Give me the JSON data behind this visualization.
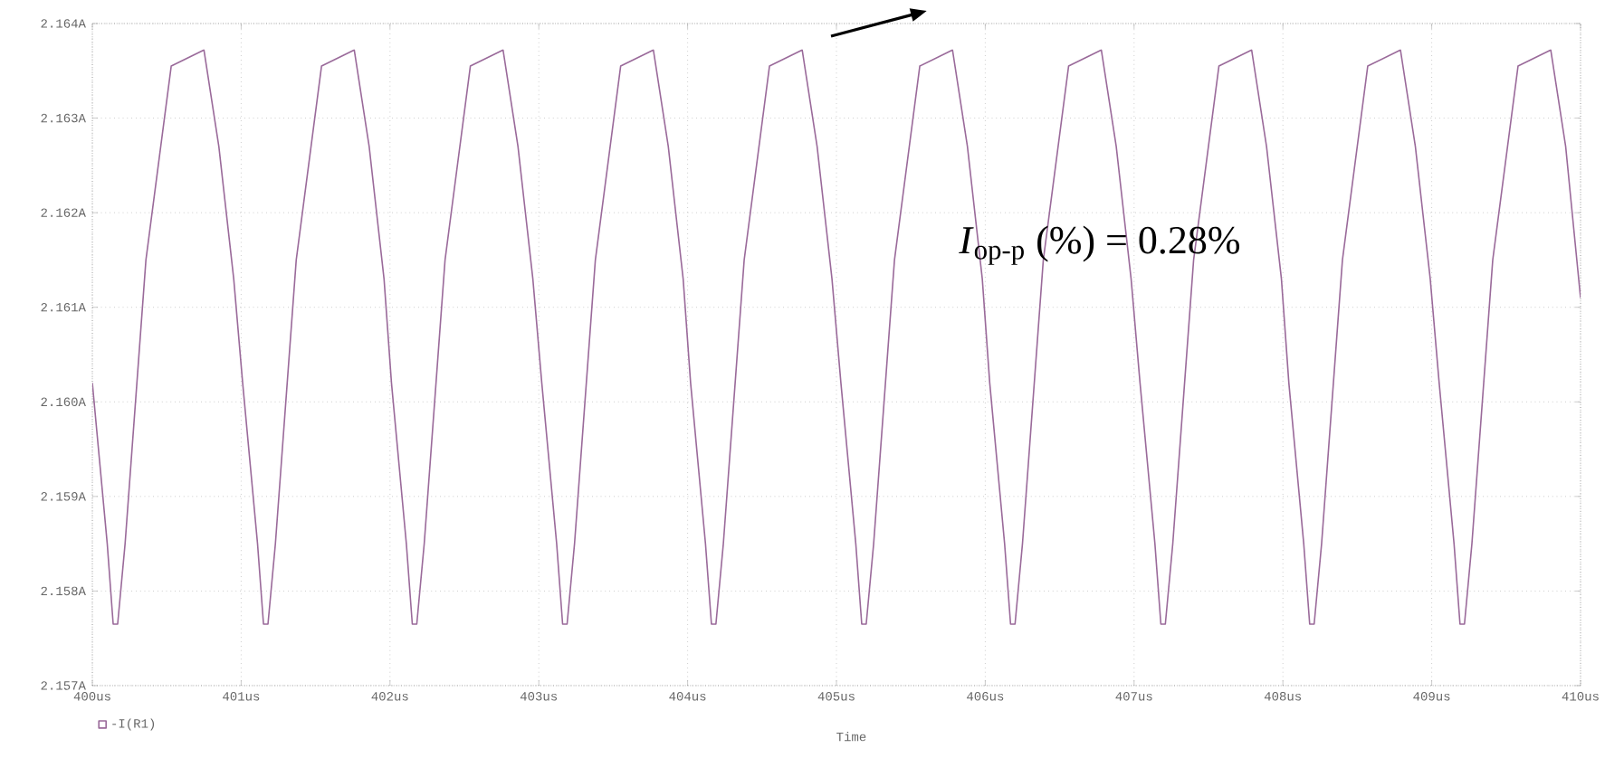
{
  "chart_data": {
    "type": "line",
    "xlabel": "Time",
    "annotations": [
      "*I*$_{op-p}$ (%) = 0.28%"
    ],
    "xlim": [
      400,
      410
    ],
    "xticks": [
      {
        "value": 400,
        "label": "400us"
      },
      {
        "value": 401,
        "label": "401us"
      },
      {
        "value": 402,
        "label": "402us"
      },
      {
        "value": 403,
        "label": "403us"
      },
      {
        "value": 404,
        "label": "404us"
      },
      {
        "value": 405,
        "label": "405us"
      },
      {
        "value": 406,
        "label": "406us"
      },
      {
        "value": 407,
        "label": "407us"
      },
      {
        "value": 408,
        "label": "408us"
      },
      {
        "value": 409,
        "label": "409us"
      },
      {
        "value": 410,
        "label": "410us"
      }
    ],
    "ylim": [
      2.157,
      2.164
    ],
    "yticks": [
      {
        "value": 2.157,
        "label": "2.157A"
      },
      {
        "value": 2.158,
        "label": "2.158A"
      },
      {
        "value": 2.159,
        "label": "2.159A"
      },
      {
        "value": 2.16,
        "label": "2.160A"
      },
      {
        "value": 2.161,
        "label": "2.161A"
      },
      {
        "value": 2.162,
        "label": "2.162A"
      },
      {
        "value": 2.163,
        "label": "2.163A"
      },
      {
        "value": 2.164,
        "label": "2.164A"
      }
    ],
    "grid": true,
    "legend": "bottom left",
    "marker": "none",
    "line_style": "solid",
    "series": [
      {
        "name": "-I(R1)",
        "color": "#9a6a9a",
        "x": [
          400.0,
          400.1,
          400.14,
          400.17,
          400.22,
          400.36,
          400.53,
          400.75,
          400.85,
          400.95,
          401.01,
          401.11,
          401.15,
          401.18,
          401.23,
          401.37,
          401.54,
          401.76,
          401.86,
          401.96,
          402.01,
          402.11,
          402.15,
          402.18,
          402.23,
          402.37,
          402.54,
          402.76,
          402.86,
          402.96,
          403.02,
          403.12,
          403.16,
          403.19,
          403.24,
          403.38,
          403.55,
          403.77,
          403.87,
          403.97,
          404.02,
          404.12,
          404.16,
          404.19,
          404.24,
          404.38,
          404.55,
          404.77,
          404.87,
          404.97,
          405.03,
          405.13,
          405.17,
          405.2,
          405.25,
          405.39,
          405.56,
          405.78,
          405.88,
          405.98,
          406.03,
          406.13,
          406.17,
          406.2,
          406.25,
          406.39,
          406.56,
          406.78,
          406.88,
          406.98,
          407.04,
          407.14,
          407.18,
          407.21,
          407.26,
          407.4,
          407.57,
          407.79,
          407.89,
          407.99,
          408.04,
          408.14,
          408.18,
          408.21,
          408.26,
          408.4,
          408.57,
          408.79,
          408.89,
          408.99,
          409.05,
          409.15,
          409.19,
          409.22,
          409.27,
          409.41,
          409.58,
          409.8,
          409.9,
          410.0
        ],
        "values": [
          2.1602,
          2.1585,
          2.15765,
          2.15765,
          2.1585,
          2.1615,
          2.16355,
          2.16372,
          2.1627,
          2.1613,
          2.1602,
          2.1585,
          2.15765,
          2.15765,
          2.1585,
          2.1615,
          2.16355,
          2.16372,
          2.1627,
          2.1613,
          2.1602,
          2.1585,
          2.15765,
          2.15765,
          2.1585,
          2.1615,
          2.16355,
          2.16372,
          2.1627,
          2.1613,
          2.1602,
          2.1585,
          2.15765,
          2.15765,
          2.1585,
          2.1615,
          2.16355,
          2.16372,
          2.1627,
          2.1613,
          2.1602,
          2.1585,
          2.15765,
          2.15765,
          2.1585,
          2.1615,
          2.16355,
          2.16372,
          2.1627,
          2.1613,
          2.1602,
          2.1585,
          2.15765,
          2.15765,
          2.1585,
          2.1615,
          2.16355,
          2.16372,
          2.1627,
          2.1613,
          2.1602,
          2.1585,
          2.15765,
          2.15765,
          2.1585,
          2.1615,
          2.16355,
          2.16372,
          2.1627,
          2.1613,
          2.1602,
          2.1585,
          2.15765,
          2.15765,
          2.1585,
          2.1615,
          2.16355,
          2.16372,
          2.1627,
          2.1613,
          2.1602,
          2.1585,
          2.15765,
          2.15765,
          2.1585,
          2.1615,
          2.16355,
          2.16372,
          2.1627,
          2.1613,
          2.1602,
          2.1585,
          2.15765,
          2.15765,
          2.1585,
          2.1615,
          2.16355,
          2.16372,
          2.1627,
          2.1611
        ]
      }
    ]
  }
}
